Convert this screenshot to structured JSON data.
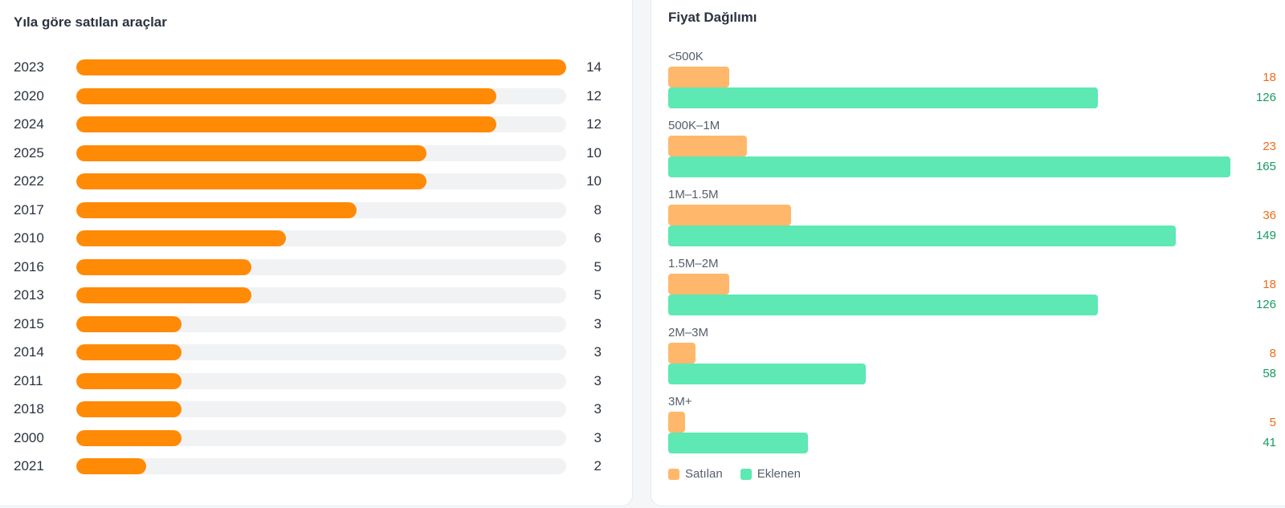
{
  "left_card": {
    "title": "Yıla göre satılan araçlar"
  },
  "right_card": {
    "title": "Fiyat Dağılımı"
  },
  "colors": {
    "year_bar": "#ff8a05",
    "track": "#f1f2f4",
    "sold_bar": "#ffb86b",
    "added_bar": "#5de8b4",
    "sold_text": "#f06a18",
    "added_text": "#159a60"
  },
  "chart_data": [
    {
      "type": "bar",
      "orientation": "horizontal",
      "title": "Yıla göre satılan araçlar",
      "categories": [
        "2023",
        "2020",
        "2024",
        "2025",
        "2022",
        "2017",
        "2010",
        "2016",
        "2013",
        "2015",
        "2014",
        "2011",
        "2018",
        "2000",
        "2021"
      ],
      "values": [
        14,
        12,
        12,
        10,
        10,
        8,
        6,
        5,
        5,
        3,
        3,
        3,
        3,
        3,
        2
      ],
      "xlim": [
        0,
        14
      ],
      "grid": false
    },
    {
      "type": "bar",
      "orientation": "horizontal",
      "title": "Fiyat Dağılımı",
      "categories": [
        "<500K",
        "500K–1M",
        "1M–1.5M",
        "1.5M–2M",
        "2M–3M",
        "3M+"
      ],
      "series": [
        {
          "name": "Satılan",
          "values": [
            18,
            23,
            36,
            18,
            8,
            5
          ]
        },
        {
          "name": "Eklenen",
          "values": [
            126,
            165,
            149,
            126,
            58,
            41
          ]
        }
      ],
      "xlim": [
        0,
        165
      ],
      "legend": "bottom-left",
      "grid": false
    }
  ]
}
